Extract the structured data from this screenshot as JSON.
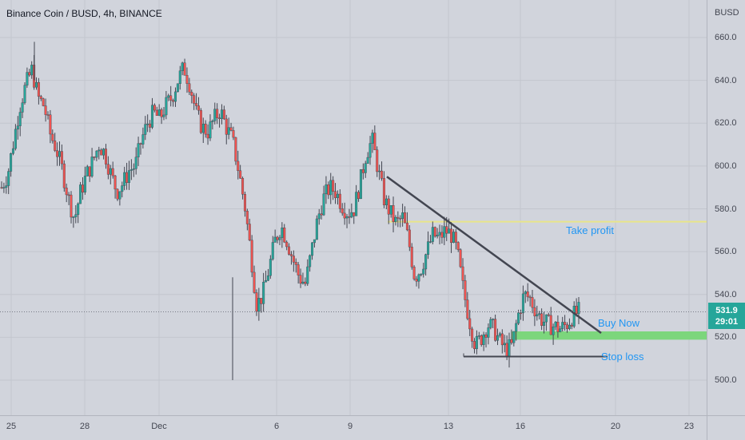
{
  "header": {
    "symbol_title": "Binance Coin / BUSD, 4h, BINANCE",
    "currency": "BUSD"
  },
  "price_axis": {
    "labels": [
      "660.0",
      "640.0",
      "620.0",
      "600.0",
      "580.0",
      "560.0",
      "540.0",
      "520.0",
      "500.0"
    ]
  },
  "time_axis": {
    "labels": [
      "25",
      "28",
      "Dec",
      "6",
      "9",
      "13",
      "16",
      "20",
      "23"
    ]
  },
  "last_price": {
    "value": "531.9",
    "countdown": "29:01"
  },
  "annotations": {
    "take_profit": "Take profit",
    "buy_now": "Buy Now",
    "stop_loss": "Stop loss"
  },
  "levels": {
    "take_profit": 574,
    "buy_zone_low": 520,
    "buy_zone_high": 522,
    "stop_loss": 511,
    "last_price": 531.9
  },
  "colors": {
    "background": "#d1d4dc",
    "up_candle": "#26a69a",
    "down_candle": "#ef5350",
    "take_profit_line": "#e8e58a",
    "buy_zone": "#7cd67c",
    "trend_line": "#434651",
    "annotation_text": "#2196f3"
  },
  "chart_data": {
    "type": "candlestick",
    "title": "Binance Coin / BUSD, 4h, BINANCE",
    "ylim": [
      485,
      670
    ],
    "yticks": [
      500,
      520,
      540,
      560,
      580,
      600,
      620,
      640,
      660
    ],
    "xticks": [
      "25",
      "28",
      "Dec",
      "6",
      "9",
      "13",
      "16",
      "20",
      "23"
    ],
    "close_path": [
      590,
      596,
      612,
      628,
      638,
      645,
      632,
      628,
      615,
      608,
      598,
      585,
      575,
      588,
      596,
      602,
      610,
      606,
      596,
      588,
      592,
      598,
      600,
      612,
      620,
      625,
      622,
      628,
      632,
      640,
      646,
      638,
      625,
      618,
      616,
      622,
      626,
      618,
      612,
      598,
      582,
      560,
      535,
      540,
      552,
      565,
      572,
      565,
      556,
      548,
      545,
      560,
      575,
      585,
      590,
      588,
      582,
      578,
      580,
      592,
      606,
      612,
      598,
      584,
      578,
      573,
      576,
      565,
      548,
      552,
      560,
      568,
      566,
      570,
      568,
      560,
      542,
      528,
      516,
      520,
      526,
      524,
      518,
      514,
      516,
      530,
      540,
      538,
      532,
      528,
      526,
      525,
      524,
      526,
      530,
      532
    ]
  }
}
